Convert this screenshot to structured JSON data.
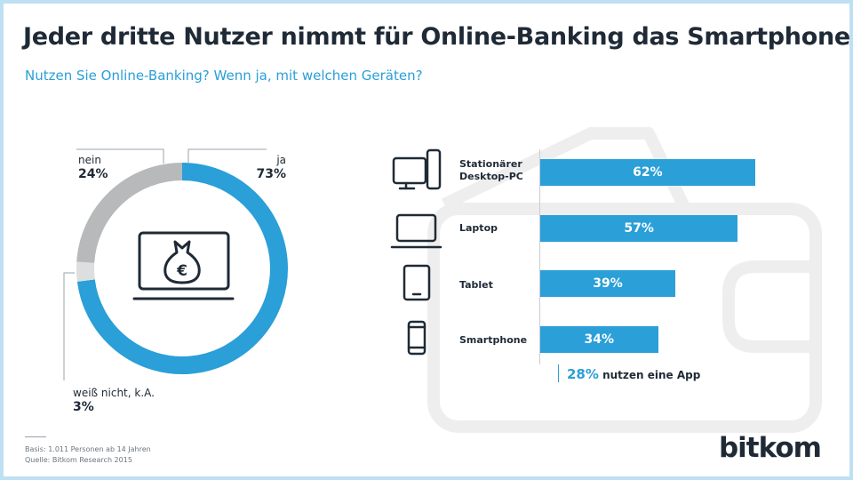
{
  "title": "Jeder dritte Nutzer nimmt für Online-Banking das Smartphone",
  "subtitle": "Nutzen Sie Online-Banking? Wenn ja, mit welchen Geräten?",
  "colors": {
    "accent": "#2a9fd8",
    "grey": "#b7b9bb",
    "light": "#dcdee0",
    "text": "#1f2a36",
    "frame": "#bfe0f3"
  },
  "chart_data": [
    {
      "type": "pie",
      "variant": "donut",
      "center_icon": "laptop-euro-moneybag-icon",
      "slices": [
        {
          "label": "ja",
          "value": 73,
          "display": "73%",
          "color": "#2a9fd8"
        },
        {
          "label": "weiß nicht, k.A.",
          "value": 3,
          "display": "3%",
          "color": "#dcdee0"
        },
        {
          "label": "nein",
          "value": 24,
          "display": "24%",
          "color": "#b7b9bb"
        }
      ]
    },
    {
      "type": "bar",
      "orientation": "horizontal",
      "categories": [
        "Stationärer\nDesktop-PC",
        "Laptop",
        "Tablet",
        "Smartphone"
      ],
      "icons": [
        "desktop-pc-icon",
        "laptop-icon",
        "tablet-icon",
        "smartphone-icon"
      ],
      "values": [
        62,
        57,
        39,
        34
      ],
      "display": [
        "62%",
        "57%",
        "39%",
        "34%"
      ],
      "xlim": [
        0,
        100
      ],
      "annotation": {
        "value": "28%",
        "text": "nutzen eine App"
      }
    }
  ],
  "footer": {
    "basis": "Basis: 1.011 Personen ab 14 Jahren",
    "source": "Quelle: Bitkom Research 2015"
  },
  "logo": {
    "text": "bitkom"
  }
}
